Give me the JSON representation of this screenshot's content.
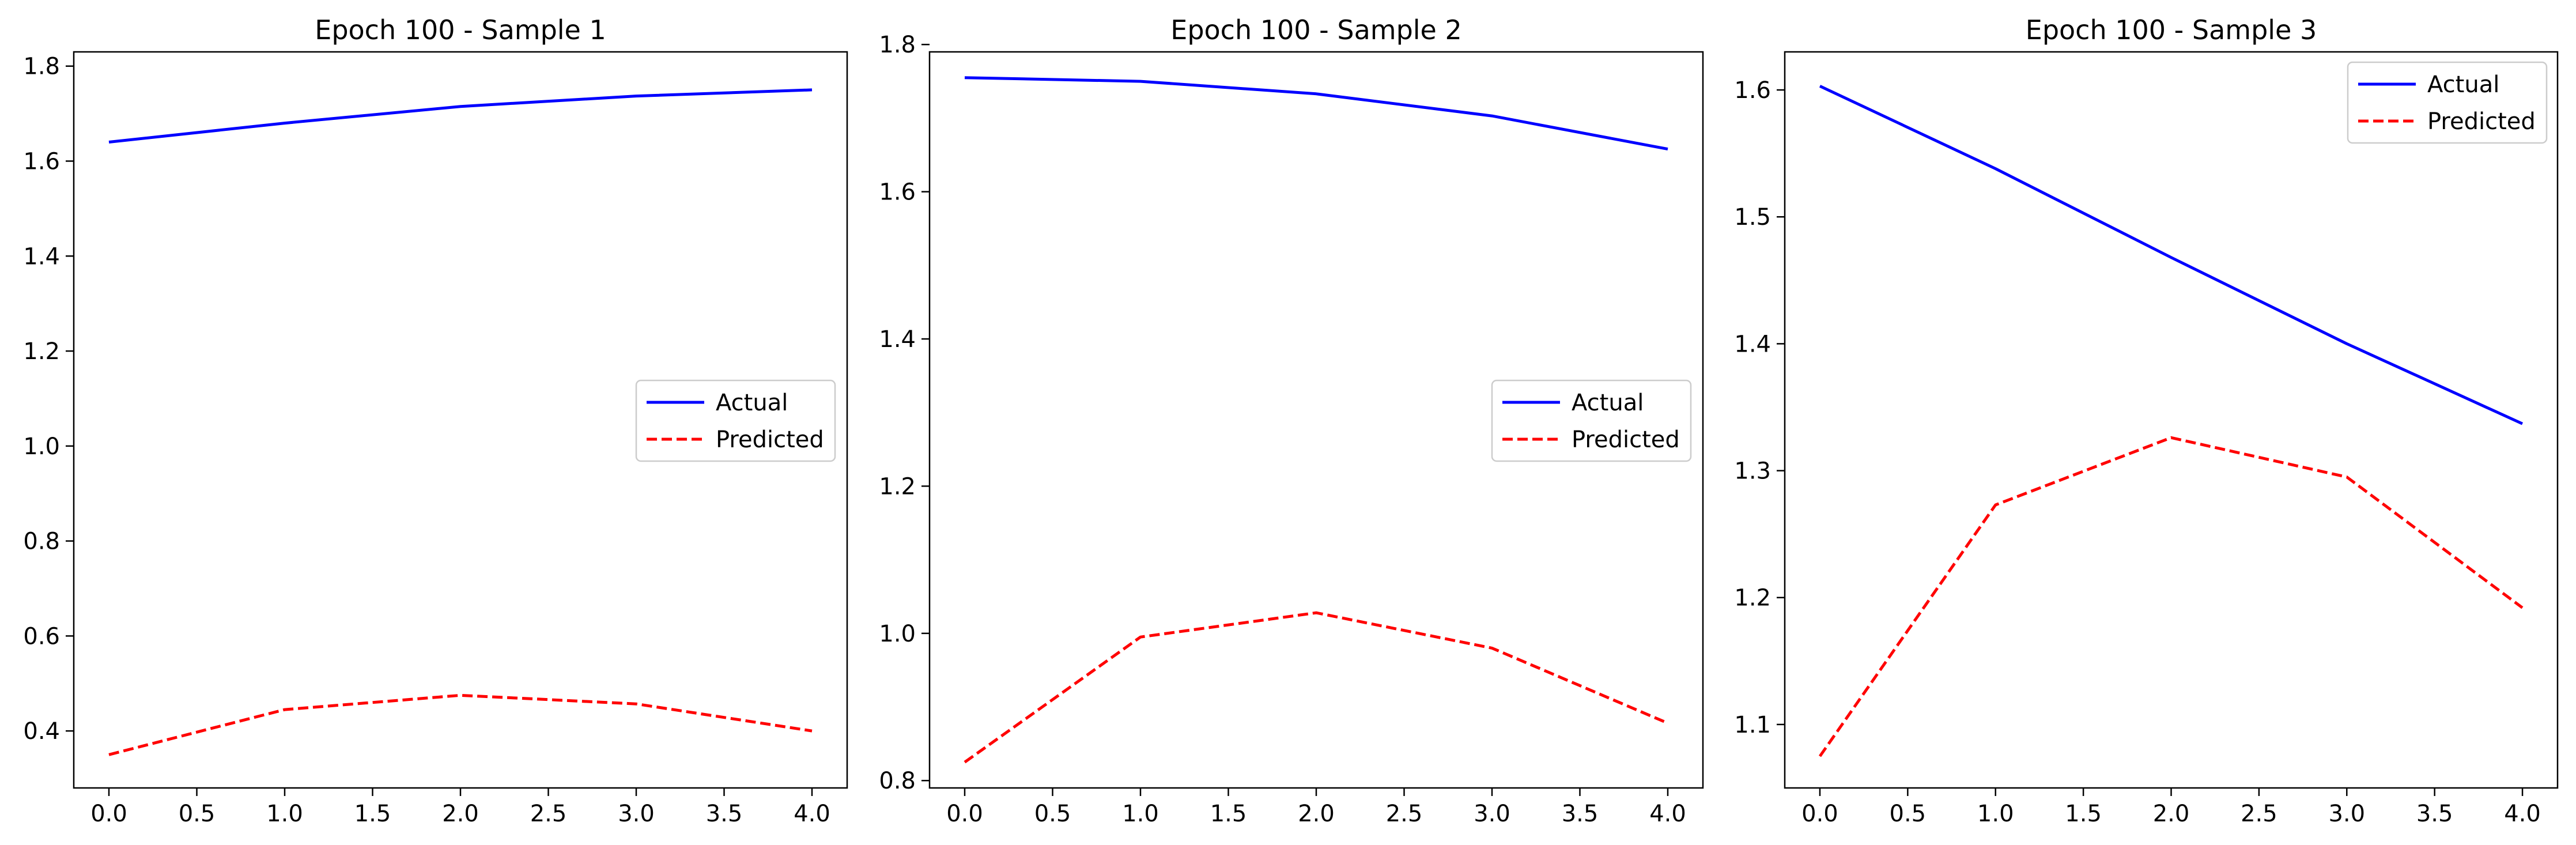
{
  "chart_data": [
    {
      "type": "line",
      "title": "Epoch 100 - Sample 1",
      "xlabel": "",
      "ylabel": "",
      "x": [
        0,
        1,
        2,
        3,
        4
      ],
      "xlim": [
        -0.2,
        4.2
      ],
      "ylim": [
        0.28,
        1.83
      ],
      "xticks": [
        0.0,
        0.5,
        1.0,
        1.5,
        2.0,
        2.5,
        3.0,
        3.5,
        4.0
      ],
      "yticks": [
        0.4,
        0.6,
        0.8,
        1.0,
        1.2,
        1.4,
        1.6,
        1.8
      ],
      "tick_decimals": 1,
      "grid": false,
      "legend_position": "center-right",
      "series": [
        {
          "name": "Actual",
          "color": "#0000ff",
          "style": "solid",
          "values": [
            1.64,
            1.68,
            1.715,
            1.737,
            1.75
          ]
        },
        {
          "name": "Predicted",
          "color": "#ff0000",
          "style": "dashed",
          "values": [
            0.35,
            0.445,
            0.475,
            0.457,
            0.4
          ]
        }
      ]
    },
    {
      "type": "line",
      "title": "Epoch 100 - Sample 2",
      "xlabel": "",
      "ylabel": "",
      "x": [
        0,
        1,
        2,
        3,
        4
      ],
      "xlim": [
        -0.2,
        4.2
      ],
      "ylim": [
        0.79,
        1.79
      ],
      "xticks": [
        0.0,
        0.5,
        1.0,
        1.5,
        2.0,
        2.5,
        3.0,
        3.5,
        4.0
      ],
      "yticks": [
        0.8,
        1.0,
        1.2,
        1.4,
        1.6,
        1.8
      ],
      "tick_decimals": 1,
      "grid": false,
      "legend_position": "center-right",
      "series": [
        {
          "name": "Actual",
          "color": "#0000ff",
          "style": "solid",
          "values": [
            1.755,
            1.75,
            1.733,
            1.703,
            1.658
          ]
        },
        {
          "name": "Predicted",
          "color": "#ff0000",
          "style": "dashed",
          "values": [
            0.825,
            0.995,
            1.028,
            0.98,
            0.878
          ]
        }
      ]
    },
    {
      "type": "line",
      "title": "Epoch 100 - Sample 3",
      "xlabel": "",
      "ylabel": "",
      "x": [
        0,
        1,
        2,
        3,
        4
      ],
      "xlim": [
        -0.2,
        4.2
      ],
      "ylim": [
        1.05,
        1.63
      ],
      "xticks": [
        0.0,
        0.5,
        1.0,
        1.5,
        2.0,
        2.5,
        3.0,
        3.5,
        4.0
      ],
      "yticks": [
        1.1,
        1.2,
        1.3,
        1.4,
        1.5,
        1.6
      ],
      "tick_decimals": 1,
      "grid": false,
      "legend_position": "top-right",
      "series": [
        {
          "name": "Actual",
          "color": "#0000ff",
          "style": "solid",
          "values": [
            1.603,
            1.538,
            1.468,
            1.4,
            1.337
          ]
        },
        {
          "name": "Predicted",
          "color": "#ff0000",
          "style": "dashed",
          "values": [
            1.075,
            1.273,
            1.326,
            1.295,
            1.192
          ]
        }
      ]
    }
  ]
}
